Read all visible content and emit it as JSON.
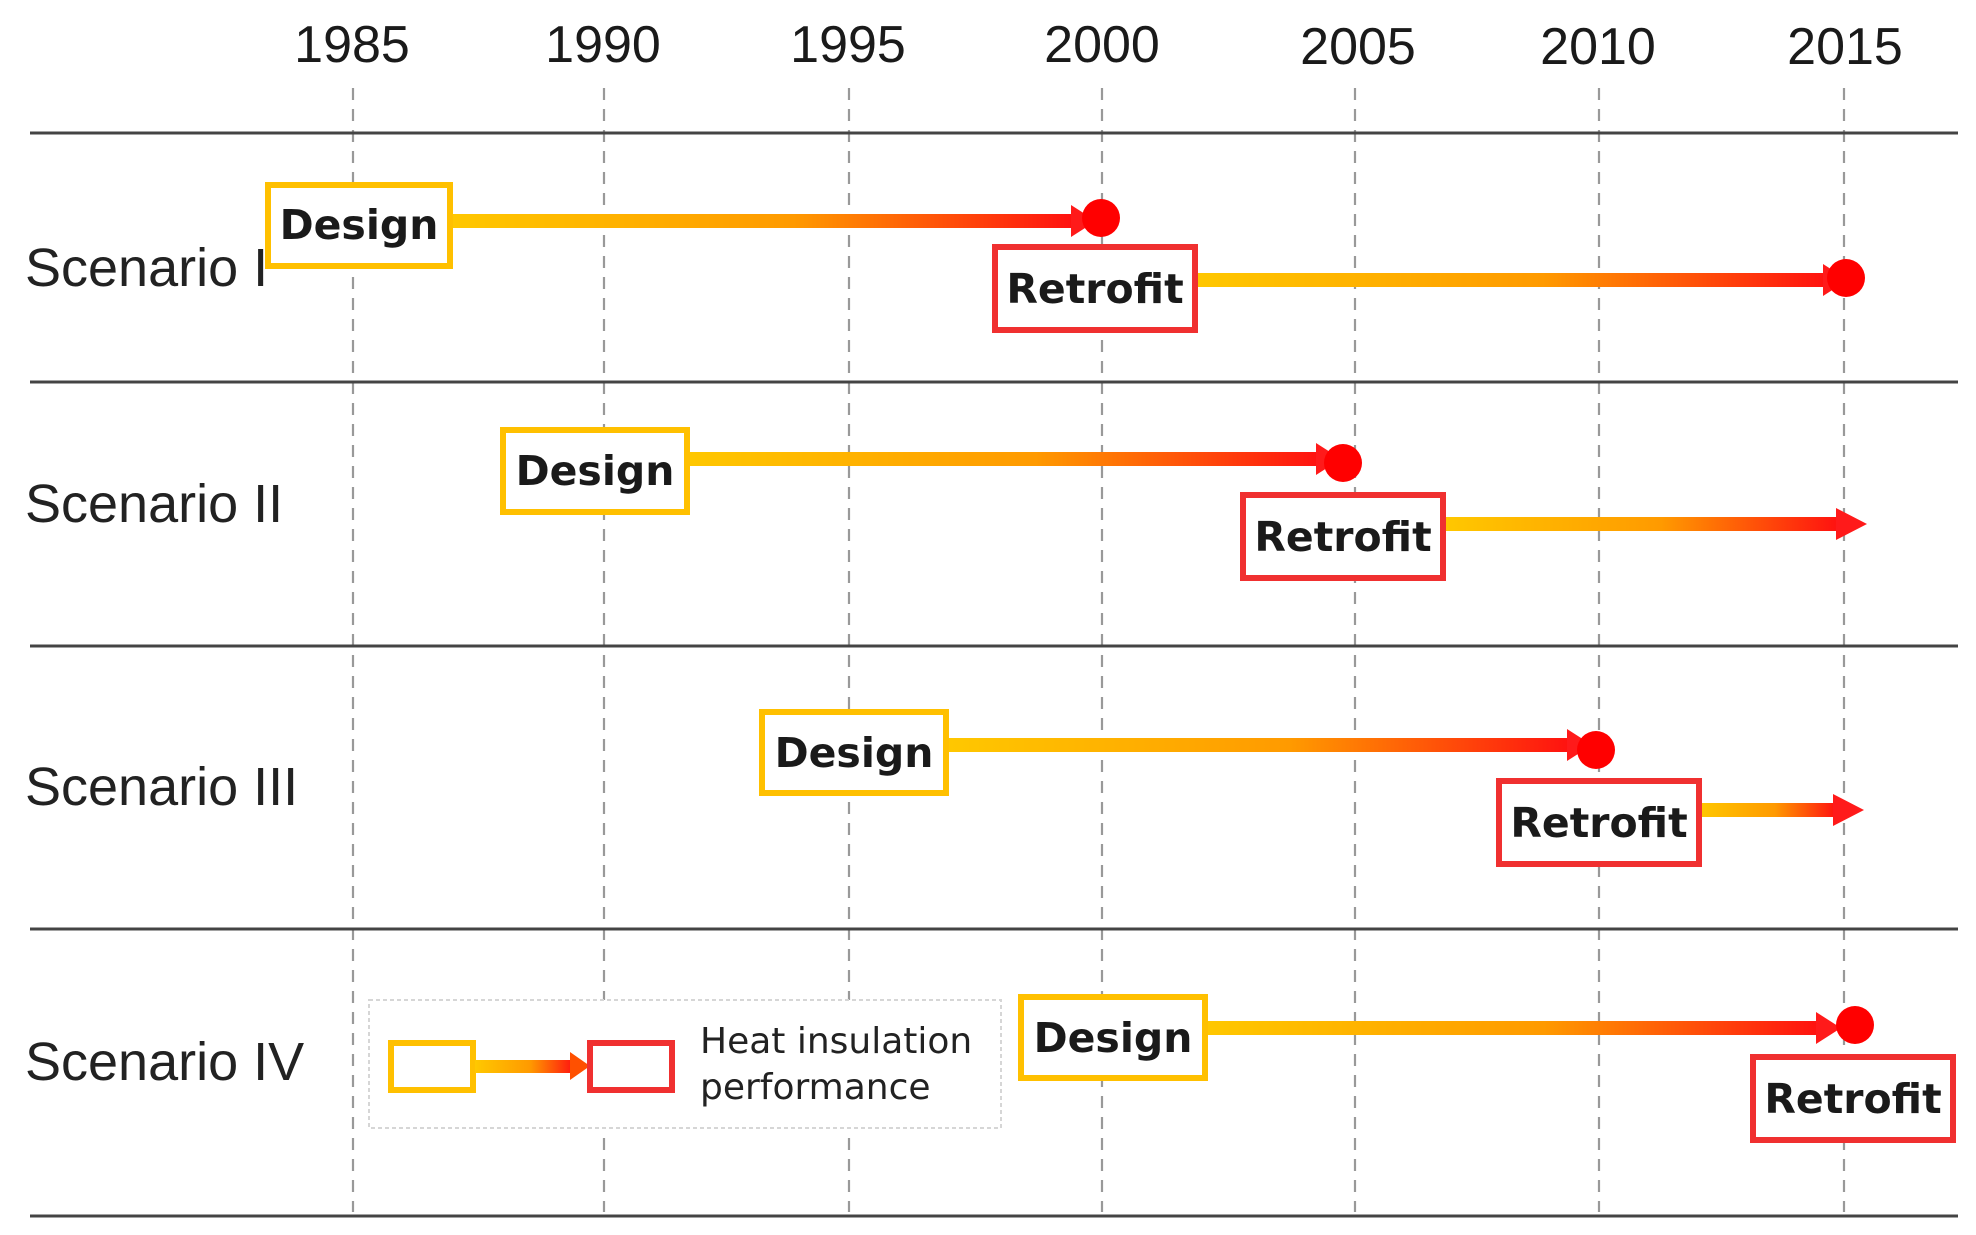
{
  "timeline": {
    "years": [
      "1985",
      "1990",
      "1995",
      "2000",
      "2005",
      "2010",
      "2015"
    ],
    "scenarios": [
      {
        "label": "Scenario I",
        "design": {
          "label": "Design",
          "start": 1985,
          "end": 2000
        },
        "retrofit": {
          "label": "Retrofit",
          "start": 2000,
          "end": 2015,
          "end_marker": true
        }
      },
      {
        "label": "Scenario II",
        "design": {
          "label": "Design",
          "start": 1990,
          "end": 2005
        },
        "retrofit": {
          "label": "Retrofit",
          "start": 2005,
          "end": 2015,
          "end_marker": false
        }
      },
      {
        "label": "Scenario III",
        "design": {
          "label": "Design",
          "start": 1995,
          "end": 2010
        },
        "retrofit": {
          "label": "Retrofit",
          "start": 2010,
          "end": 2015,
          "end_marker": false
        }
      },
      {
        "label": "Scenario IV",
        "design": {
          "label": "Design",
          "start": 2000,
          "end": 2015
        },
        "retrofit": {
          "label": "Retrofit",
          "start": 2015,
          "end": null,
          "end_marker": false
        }
      }
    ],
    "legend": {
      "line1": "Heat insulation",
      "line2": "performance"
    },
    "colors": {
      "design": "#FFC000",
      "retrofit": "#FF0000",
      "grid": "#999999",
      "rule": "#444444"
    }
  }
}
